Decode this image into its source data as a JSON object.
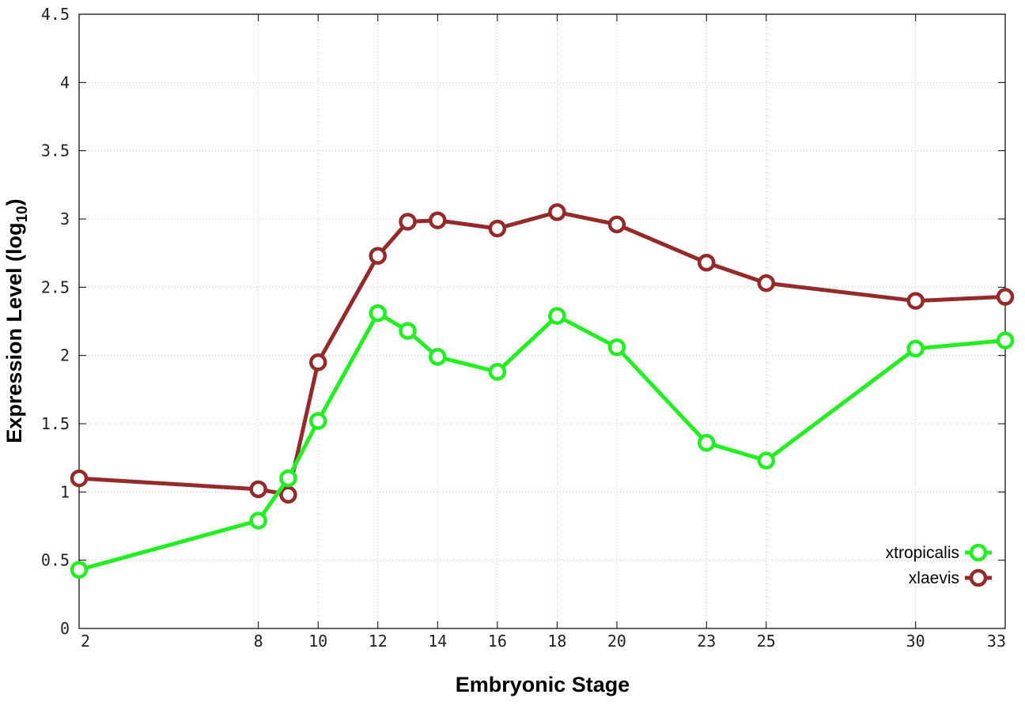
{
  "chart_data": {
    "type": "line",
    "xlabel": "Embryonic Stage",
    "ylabel_main": "Expression Level (log",
    "ylabel_sub": "10",
    "ylabel_close": ")",
    "xlim": [
      2,
      33
    ],
    "ylim": [
      0,
      4.5
    ],
    "grid": true,
    "legend_position": "bottom-right",
    "x_ticks": [
      2,
      8,
      10,
      12,
      14,
      16,
      18,
      20,
      23,
      25,
      30,
      33
    ],
    "y_ticks": [
      0,
      0.5,
      1,
      1.5,
      2,
      2.5,
      3,
      3.5,
      4,
      4.5
    ],
    "y_tick_labels": [
      "0",
      "0.5",
      "1",
      "1.5",
      "2",
      "2.5",
      "3",
      "3.5",
      "4",
      "4.5"
    ],
    "series": [
      {
        "name": "xtropicalis",
        "color": "#22ee22",
        "x": [
          2,
          8,
          9,
          10,
          12,
          13,
          14,
          16,
          18,
          20,
          23,
          25,
          30,
          33
        ],
        "y": [
          0.43,
          0.79,
          1.1,
          1.52,
          2.31,
          2.18,
          1.99,
          1.88,
          2.29,
          2.06,
          1.36,
          1.23,
          2.05,
          2.11
        ]
      },
      {
        "name": "xlaevis",
        "color": "#952a2a",
        "x": [
          2,
          8,
          9,
          10,
          12,
          13,
          14,
          16,
          18,
          20,
          23,
          25,
          30,
          33
        ],
        "y": [
          1.1,
          1.02,
          0.98,
          1.95,
          2.73,
          2.98,
          2.99,
          2.93,
          3.05,
          2.96,
          2.68,
          2.53,
          2.4,
          2.43
        ]
      }
    ]
  }
}
